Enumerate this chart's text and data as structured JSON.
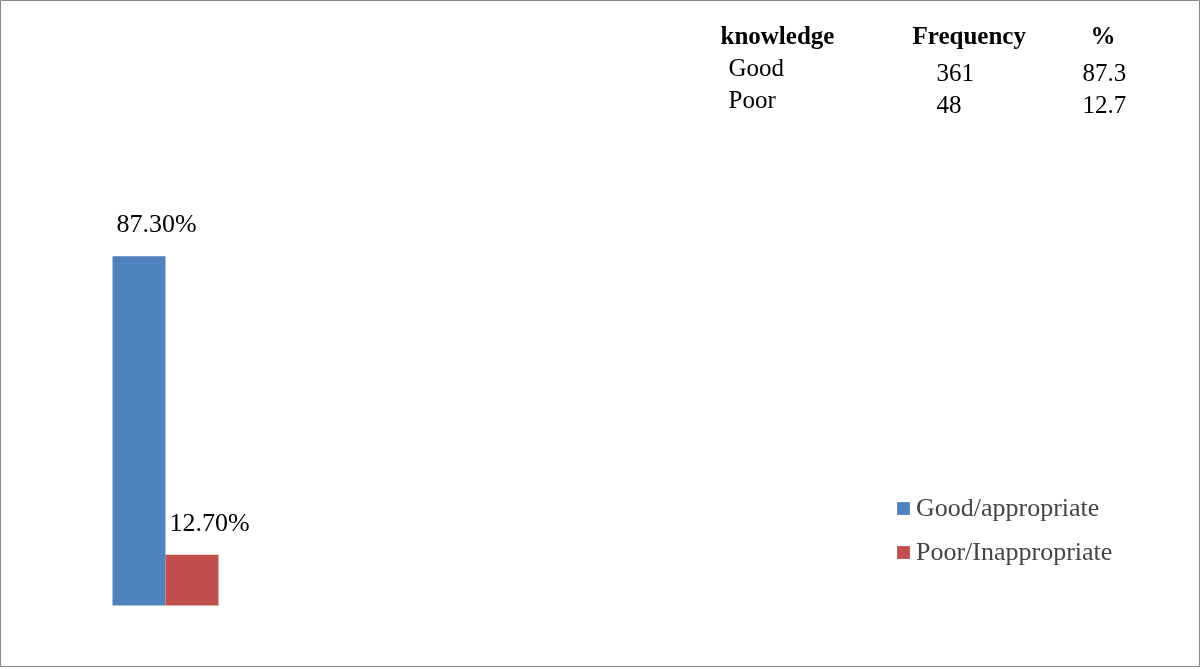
{
  "chart_data": {
    "type": "bar",
    "categories": [
      null
    ],
    "series": [
      {
        "name": "Good/appropriate",
        "color": "#4f81bd",
        "values": [
          87.3
        ],
        "value_labels": [
          "87.30%"
        ]
      },
      {
        "name": "Poor/Inappropriate",
        "color": "#c0504d",
        "values": [
          12.7
        ],
        "value_labels": [
          "12.70%"
        ]
      }
    ],
    "relative": false,
    "legend": "right",
    "grid": false,
    "annotations": [
      "knowledge",
      "Frequency",
      "%",
      "Good",
      "361",
      "87.3",
      "Poor",
      "48",
      "12.7"
    ]
  }
}
